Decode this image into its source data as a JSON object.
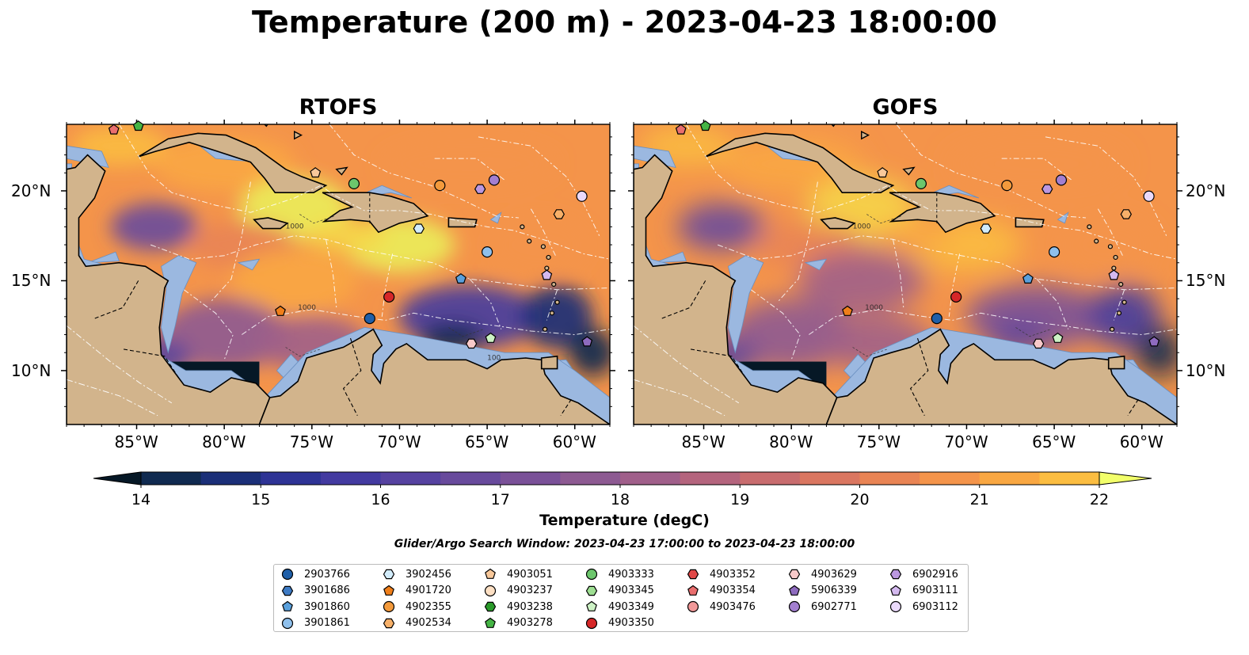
{
  "title": "Temperature (200 m) - 2023-04-23 18:00:00",
  "panels": [
    {
      "title": "RTOFS",
      "contour_labels": [
        "1000",
        "1000",
        "100"
      ]
    },
    {
      "title": "GOFS",
      "contour_labels": [
        "1000",
        "1000"
      ]
    }
  ],
  "axes": {
    "lon_ticks": [
      "85°W",
      "80°W",
      "75°W",
      "70°W",
      "65°W",
      "60°W"
    ],
    "lon_values": [
      -85,
      -80,
      -75,
      -70,
      -65,
      -60
    ],
    "lat_ticks": [
      "20°N",
      "15°N",
      "10°N"
    ],
    "lat_values": [
      20,
      15,
      10
    ],
    "lon_range": [
      -89,
      -58
    ],
    "lat_range": [
      7,
      23.7
    ]
  },
  "colorbar": {
    "label": "Temperature (degC)",
    "ticks": [
      "14",
      "15",
      "16",
      "17",
      "18",
      "19",
      "20",
      "21",
      "22"
    ],
    "range": [
      14,
      22
    ],
    "step": 0.5,
    "extend": "both",
    "colors": [
      "#0b2236",
      "#102a50",
      "#1b2f78",
      "#2e3395",
      "#433aa0",
      "#5642a0",
      "#684a9c",
      "#7a5198",
      "#8d5a92",
      "#a05f8a",
      "#b4647d",
      "#c86c6e",
      "#da7660",
      "#e98454",
      "#f4944a",
      "#f9a742",
      "#fbbd41",
      "#f6d548",
      "#ebee59"
    ],
    "under_color": "#061826",
    "over_color": "#f2ff6a"
  },
  "map_colors": {
    "land": "#d2b48c",
    "shelf": "#9bb8e0",
    "border": "#000000"
  },
  "search_window": "Glider/Argo Search Window: 2023-04-23 17:00:00 to 2023-04-23 18:00:00",
  "legend": {
    "columns": [
      [
        {
          "id": "2903766",
          "marker": "circle",
          "color": "#1f5fa8"
        },
        {
          "id": "3901686",
          "marker": "hexagon",
          "color": "#3e7bc4"
        },
        {
          "id": "3901860",
          "marker": "pentagon",
          "color": "#5aa0dc"
        },
        {
          "id": "3901861",
          "marker": "circle",
          "color": "#8fc0ec"
        }
      ],
      [
        {
          "id": "3902456",
          "marker": "hexagon",
          "color": "#d2ecfb"
        },
        {
          "id": "4901720",
          "marker": "pentagon",
          "color": "#f07f1a"
        },
        {
          "id": "4902355",
          "marker": "circle",
          "color": "#f39a3c"
        },
        {
          "id": "4902534",
          "marker": "hexagon",
          "color": "#f7b069"
        }
      ],
      [
        {
          "id": "4903051",
          "marker": "pentagon",
          "color": "#f8c89a"
        },
        {
          "id": "4903237",
          "marker": "circle",
          "color": "#fde0c4"
        },
        {
          "id": "4903238",
          "marker": "hexagon",
          "color": "#2a9a2a"
        },
        {
          "id": "4903278",
          "marker": "pentagon",
          "color": "#45b445"
        }
      ],
      [
        {
          "id": "4903333",
          "marker": "circle",
          "color": "#6cc66c"
        },
        {
          "id": "4903345",
          "marker": "hexagon",
          "color": "#9edf92"
        },
        {
          "id": "4903349",
          "marker": "pentagon",
          "color": "#cdf2c5"
        },
        {
          "id": "4903350",
          "marker": "circle",
          "color": "#d62728"
        }
      ],
      [
        {
          "id": "4903352",
          "marker": "hexagon",
          "color": "#e04848"
        },
        {
          "id": "4903354",
          "marker": "pentagon",
          "color": "#ea6e6e"
        },
        {
          "id": "4903476",
          "marker": "circle",
          "color": "#f29999"
        }
      ],
      [
        {
          "id": "4903629",
          "marker": "hexagon",
          "color": "#f8c9c9"
        },
        {
          "id": "5906339",
          "marker": "pentagon",
          "color": "#8e6bbf"
        },
        {
          "id": "6902771",
          "marker": "circle",
          "color": "#a37fd0"
        }
      ],
      [
        {
          "id": "6902916",
          "marker": "hexagon",
          "color": "#bb98e0"
        },
        {
          "id": "6903111",
          "marker": "pentagon",
          "color": "#d4b9ef"
        },
        {
          "id": "6903112",
          "marker": "circle",
          "color": "#ead9fb"
        }
      ]
    ]
  },
  "floats": [
    {
      "id": "4903354",
      "lon": -86.3,
      "lat": 23.4
    },
    {
      "id": "4903278",
      "lon": -84.9,
      "lat": 23.6
    },
    {
      "id": "4903051",
      "lon": -74.8,
      "lat": 21.0
    },
    {
      "id": "4903333",
      "lon": -72.6,
      "lat": 20.4
    },
    {
      "id": "4902355",
      "lon": -67.7,
      "lat": 20.3
    },
    {
      "id": "6902916",
      "lon": -65.4,
      "lat": 20.1
    },
    {
      "id": "6902771",
      "lon": -64.6,
      "lat": 20.6
    },
    {
      "id": "6903112",
      "lon": -59.6,
      "lat": 19.7
    },
    {
      "id": "4902534",
      "lon": -60.9,
      "lat": 18.7
    },
    {
      "id": "3902456",
      "lon": -68.9,
      "lat": 17.9
    },
    {
      "id": "3901861",
      "lon": -65.0,
      "lat": 16.6
    },
    {
      "id": "3901860",
      "lon": -66.5,
      "lat": 15.1
    },
    {
      "id": "6903111",
      "lon": -61.6,
      "lat": 15.3
    },
    {
      "id": "4903350",
      "lon": -70.6,
      "lat": 14.1
    },
    {
      "id": "4901720",
      "lon": -76.8,
      "lat": 13.3
    },
    {
      "id": "2903766",
      "lon": -71.7,
      "lat": 12.9
    },
    {
      "id": "4903349",
      "lon": -64.8,
      "lat": 11.8
    },
    {
      "id": "4903629",
      "lon": -65.9,
      "lat": 11.5
    },
    {
      "id": "5906339",
      "lon": -59.3,
      "lat": 11.6
    }
  ]
}
